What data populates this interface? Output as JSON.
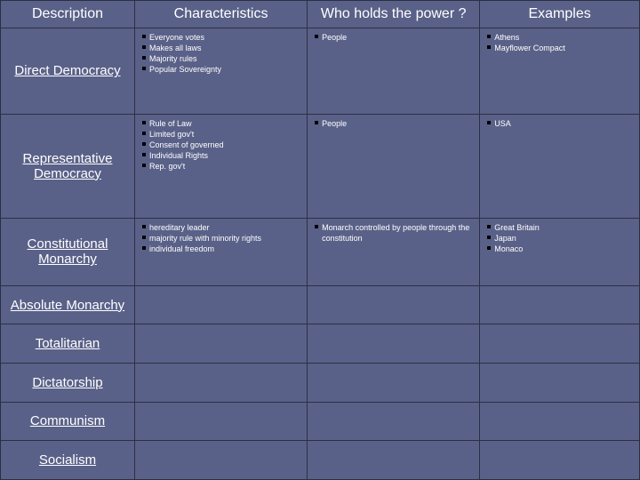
{
  "columns": [
    "Description",
    "Characteristics",
    "Who holds the power ?",
    "Examples"
  ],
  "rows": [
    {
      "name": "Direct Democracy",
      "characteristics": [
        "Everyone votes",
        "Makes all laws",
        "Majority rules",
        "Popular Sovereignty"
      ],
      "power": [
        "People"
      ],
      "examples": [
        "Athens",
        "Mayflower Compact"
      ]
    },
    {
      "name": "Representative Democracy",
      "characteristics": [
        "Rule of Law",
        "Limited gov't",
        "Consent of governed",
        "Individual Rights",
        "Rep. gov't"
      ],
      "power": [
        "People"
      ],
      "examples": [
        "USA"
      ]
    },
    {
      "name": "Constitutional Monarchy",
      "characteristics": [
        "hereditary leader",
        "majority rule with minority rights",
        "individual freedom"
      ],
      "power": [
        "Monarch controlled by people through the constitution"
      ],
      "examples": [
        "Great Britain",
        "Japan",
        "Monaco"
      ]
    },
    {
      "name": "Absolute Monarchy",
      "characteristics": [],
      "power": [],
      "examples": []
    },
    {
      "name": "Totalitarian",
      "characteristics": [],
      "power": [],
      "examples": []
    },
    {
      "name": "Dictatorship",
      "characteristics": [],
      "power": [],
      "examples": []
    },
    {
      "name": "Communism",
      "characteristics": [],
      "power": [],
      "examples": []
    },
    {
      "name": "Socialism",
      "characteristics": [],
      "power": [],
      "examples": []
    }
  ],
  "colors": {
    "background": "#5a6188",
    "border": "#2c2f44",
    "text": "#ffffff",
    "bullet": "#000000"
  },
  "typography": {
    "header_fontsize": 16,
    "rowhead_fontsize": 15,
    "body_fontsize": 9,
    "font_family": "Arial"
  },
  "column_widths_pct": [
    21,
    27,
    27,
    25
  ]
}
